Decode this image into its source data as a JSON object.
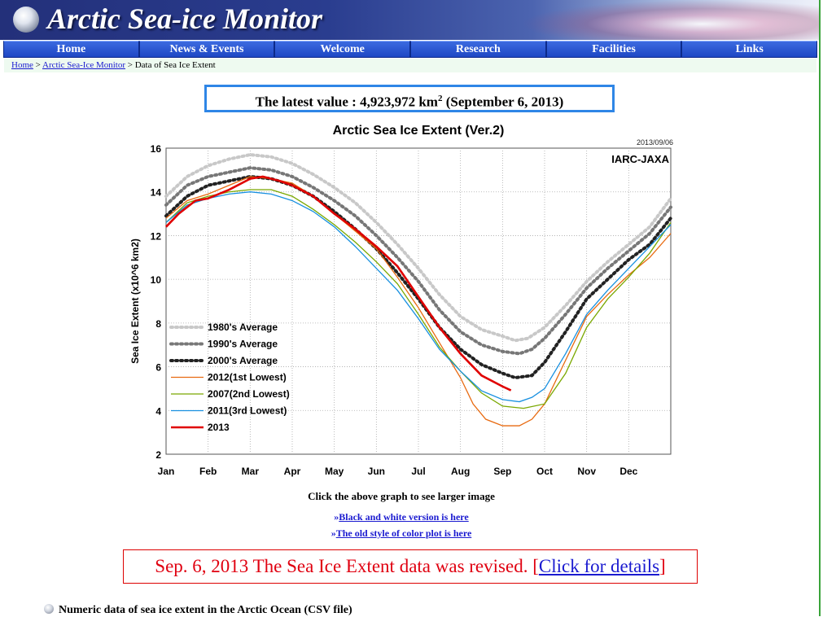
{
  "site": {
    "title": "Arctic Sea-ice Monitor"
  },
  "nav": {
    "items": [
      "Home",
      "News & Events",
      "Welcome",
      "Research",
      "Facilities",
      "Links"
    ]
  },
  "breadcrumb": {
    "home": "Home",
    "sep1": " > ",
    "monitor": "Arctic Sea-Ice Monitor",
    "sep2": " > ",
    "current": "Data of Sea Ice Extent"
  },
  "latest": {
    "prefix": "The latest value : 4,923,972 km",
    "sup": "2",
    "date": " (September 6, 2013)"
  },
  "chart_data": {
    "type": "line",
    "title": "Arctic Sea Ice Extent (Ver.2)",
    "date_stamp": "2013/09/06",
    "credit": "IARC-JAXA",
    "ylabel": "Sea Ice Extent (x10^6 km2)",
    "xlabel": "",
    "ylim": [
      2,
      16
    ],
    "yticks": [
      2,
      4,
      6,
      8,
      10,
      12,
      14,
      16
    ],
    "months": [
      "Jan",
      "Feb",
      "Mar",
      "Apr",
      "May",
      "Jun",
      "Jul",
      "Aug",
      "Sep",
      "Oct",
      "Nov",
      "Dec"
    ],
    "grid": true,
    "legend_position": "bottom-left",
    "series": [
      {
        "name": "1980's Average",
        "color": "#c8c8c8",
        "style": "dotted",
        "points": [
          [
            0,
            13.8
          ],
          [
            0.5,
            14.7
          ],
          [
            1,
            15.2
          ],
          [
            1.5,
            15.5
          ],
          [
            2,
            15.7
          ],
          [
            2.5,
            15.6
          ],
          [
            3,
            15.3
          ],
          [
            3.5,
            14.8
          ],
          [
            4,
            14.2
          ],
          [
            4.5,
            13.5
          ],
          [
            5,
            12.6
          ],
          [
            5.5,
            11.6
          ],
          [
            6,
            10.5
          ],
          [
            6.5,
            9.3
          ],
          [
            7,
            8.3
          ],
          [
            7.5,
            7.7
          ],
          [
            8,
            7.4
          ],
          [
            8.3,
            7.2
          ],
          [
            8.6,
            7.3
          ],
          [
            9,
            7.8
          ],
          [
            9.5,
            8.8
          ],
          [
            10,
            9.9
          ],
          [
            10.5,
            10.8
          ],
          [
            11,
            11.6
          ],
          [
            11.5,
            12.4
          ],
          [
            12,
            13.7
          ]
        ]
      },
      {
        "name": "1990's Average",
        "color": "#777777",
        "style": "dotted",
        "points": [
          [
            0,
            13.4
          ],
          [
            0.5,
            14.3
          ],
          [
            1,
            14.7
          ],
          [
            1.5,
            14.9
          ],
          [
            2,
            15.1
          ],
          [
            2.5,
            15.0
          ],
          [
            3,
            14.7
          ],
          [
            3.5,
            14.2
          ],
          [
            4,
            13.6
          ],
          [
            4.5,
            12.9
          ],
          [
            5,
            12.0
          ],
          [
            5.5,
            11.0
          ],
          [
            6,
            9.9
          ],
          [
            6.5,
            8.6
          ],
          [
            7,
            7.6
          ],
          [
            7.5,
            7.0
          ],
          [
            8,
            6.7
          ],
          [
            8.4,
            6.6
          ],
          [
            8.7,
            6.8
          ],
          [
            9,
            7.3
          ],
          [
            9.5,
            8.4
          ],
          [
            10,
            9.6
          ],
          [
            10.5,
            10.5
          ],
          [
            11,
            11.3
          ],
          [
            11.5,
            12.1
          ],
          [
            12,
            13.3
          ]
        ]
      },
      {
        "name": "2000's Average",
        "color": "#222222",
        "style": "dotted",
        "points": [
          [
            0,
            12.9
          ],
          [
            0.5,
            13.8
          ],
          [
            1,
            14.3
          ],
          [
            1.5,
            14.5
          ],
          [
            2,
            14.7
          ],
          [
            2.5,
            14.6
          ],
          [
            3,
            14.3
          ],
          [
            3.5,
            13.8
          ],
          [
            4,
            13.1
          ],
          [
            4.5,
            12.3
          ],
          [
            5,
            11.4
          ],
          [
            5.5,
            10.3
          ],
          [
            6,
            9.1
          ],
          [
            6.5,
            7.8
          ],
          [
            7,
            6.8
          ],
          [
            7.5,
            6.1
          ],
          [
            8,
            5.7
          ],
          [
            8.3,
            5.5
          ],
          [
            8.7,
            5.6
          ],
          [
            9,
            6.2
          ],
          [
            9.5,
            7.6
          ],
          [
            10,
            9.1
          ],
          [
            10.5,
            10.0
          ],
          [
            11,
            10.9
          ],
          [
            11.5,
            11.6
          ],
          [
            12,
            12.8
          ]
        ]
      },
      {
        "name": "2012(1st Lowest)",
        "color": "#e86a10",
        "style": "solid",
        "points": [
          [
            0,
            12.8
          ],
          [
            0.5,
            13.6
          ],
          [
            1,
            13.9
          ],
          [
            1.5,
            14.3
          ],
          [
            2,
            14.7
          ],
          [
            2.5,
            14.6
          ],
          [
            3,
            14.4
          ],
          [
            3.5,
            13.8
          ],
          [
            4,
            13.0
          ],
          [
            4.5,
            12.2
          ],
          [
            5,
            11.4
          ],
          [
            5.5,
            10.1
          ],
          [
            6,
            8.7
          ],
          [
            6.5,
            7.1
          ],
          [
            7,
            5.5
          ],
          [
            7.3,
            4.3
          ],
          [
            7.6,
            3.6
          ],
          [
            8,
            3.3
          ],
          [
            8.4,
            3.3
          ],
          [
            8.7,
            3.6
          ],
          [
            9,
            4.3
          ],
          [
            9.5,
            6.3
          ],
          [
            10,
            8.3
          ],
          [
            10.5,
            9.3
          ],
          [
            11,
            10.2
          ],
          [
            11.5,
            11.0
          ],
          [
            12,
            12.1
          ]
        ]
      },
      {
        "name": "2007(2nd Lowest)",
        "color": "#7aa800",
        "style": "solid",
        "points": [
          [
            0,
            12.6
          ],
          [
            0.5,
            13.5
          ],
          [
            1,
            13.8
          ],
          [
            1.5,
            14.0
          ],
          [
            2,
            14.1
          ],
          [
            2.5,
            14.1
          ],
          [
            3,
            13.8
          ],
          [
            3.5,
            13.2
          ],
          [
            4,
            12.5
          ],
          [
            4.5,
            11.7
          ],
          [
            5,
            10.8
          ],
          [
            5.5,
            9.8
          ],
          [
            6,
            8.4
          ],
          [
            6.5,
            6.9
          ],
          [
            7,
            5.8
          ],
          [
            7.5,
            4.8
          ],
          [
            8,
            4.2
          ],
          [
            8.5,
            4.1
          ],
          [
            9,
            4.3
          ],
          [
            9.5,
            5.7
          ],
          [
            10,
            7.8
          ],
          [
            10.5,
            9.1
          ],
          [
            11,
            10.1
          ],
          [
            11.5,
            11.2
          ],
          [
            12,
            12.6
          ]
        ]
      },
      {
        "name": "2011(3rd Lowest)",
        "color": "#1890e0",
        "style": "solid",
        "points": [
          [
            0,
            12.6
          ],
          [
            0.5,
            13.4
          ],
          [
            1,
            13.7
          ],
          [
            1.5,
            13.9
          ],
          [
            2,
            14.0
          ],
          [
            2.5,
            13.9
          ],
          [
            3,
            13.6
          ],
          [
            3.5,
            13.1
          ],
          [
            4,
            12.4
          ],
          [
            4.5,
            11.5
          ],
          [
            5,
            10.5
          ],
          [
            5.5,
            9.5
          ],
          [
            6,
            8.2
          ],
          [
            6.5,
            6.8
          ],
          [
            7,
            5.8
          ],
          [
            7.5,
            4.9
          ],
          [
            8,
            4.5
          ],
          [
            8.4,
            4.4
          ],
          [
            8.7,
            4.6
          ],
          [
            9,
            5.0
          ],
          [
            9.5,
            6.6
          ],
          [
            10,
            8.4
          ],
          [
            10.5,
            9.5
          ],
          [
            11,
            10.5
          ],
          [
            11.5,
            11.5
          ],
          [
            12,
            12.5
          ]
        ]
      },
      {
        "name": "2013",
        "color": "#e00000",
        "style": "solid-bold",
        "points": [
          [
            0,
            12.4
          ],
          [
            0.3,
            13.0
          ],
          [
            0.7,
            13.6
          ],
          [
            1,
            13.7
          ],
          [
            1.5,
            14.1
          ],
          [
            2,
            14.6
          ],
          [
            2.3,
            14.7
          ],
          [
            2.7,
            14.5
          ],
          [
            3,
            14.3
          ],
          [
            3.5,
            13.8
          ],
          [
            4,
            13.0
          ],
          [
            4.5,
            12.3
          ],
          [
            5,
            11.5
          ],
          [
            5.5,
            10.6
          ],
          [
            6,
            9.2
          ],
          [
            6.5,
            7.8
          ],
          [
            7,
            6.6
          ],
          [
            7.5,
            5.6
          ],
          [
            8,
            5.1
          ],
          [
            8.2,
            4.92
          ]
        ]
      }
    ]
  },
  "captions": {
    "click_graph": "Click the above graph to see larger image",
    "bw_arrow": "»",
    "bw_link": "Black and white version is here",
    "old_arrow": "»",
    "old_link": "The old style of color plot is here"
  },
  "revision": {
    "text": "Sep. 6, 2013 The Sea Ice Extent data was revised. [",
    "link": "Click for details",
    "close": "]"
  },
  "numeric": {
    "label": "Numeric data of sea ice extent in the Arctic Ocean (CSV file)"
  }
}
